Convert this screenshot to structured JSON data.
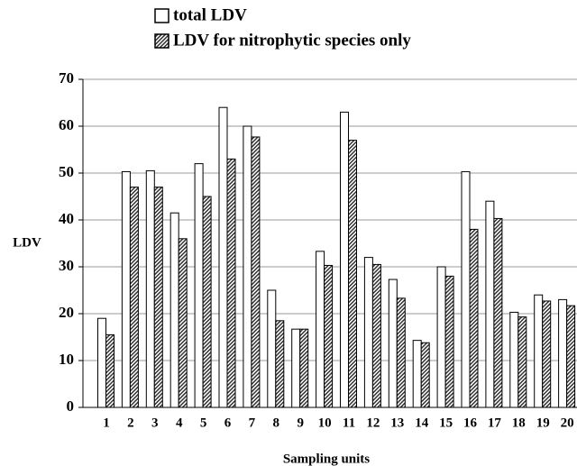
{
  "chart_data": {
    "type": "bar",
    "y_label": "LDV",
    "x_label": "Sampling units",
    "categories": [
      "1",
      "2",
      "3",
      "4",
      "5",
      "6",
      "7",
      "8",
      "9",
      "10",
      "11",
      "12",
      "13",
      "14",
      "15",
      "16",
      "17",
      "18",
      "19",
      "20"
    ],
    "series": [
      {
        "name": "total LDV",
        "color": "#ffffff",
        "values": [
          19,
          50.3,
          50.5,
          41.5,
          52,
          64,
          60,
          25,
          16.7,
          33.3,
          63,
          32,
          27.3,
          14.3,
          30,
          50.3,
          44,
          20.3,
          24,
          23
        ]
      },
      {
        "name": "LDV for nitrophytic species only",
        "color": "#333333",
        "hatch": true,
        "values": [
          15.5,
          47,
          47,
          36,
          45,
          53,
          57.7,
          18.5,
          16.7,
          30.3,
          57,
          30.5,
          23.3,
          13.8,
          28,
          38,
          40.3,
          19.3,
          22.7,
          21.7
        ]
      }
    ],
    "ylim": [
      0,
      70
    ],
    "yticks": [
      0,
      10,
      20,
      30,
      40,
      50,
      60,
      70
    ],
    "grid": true
  }
}
